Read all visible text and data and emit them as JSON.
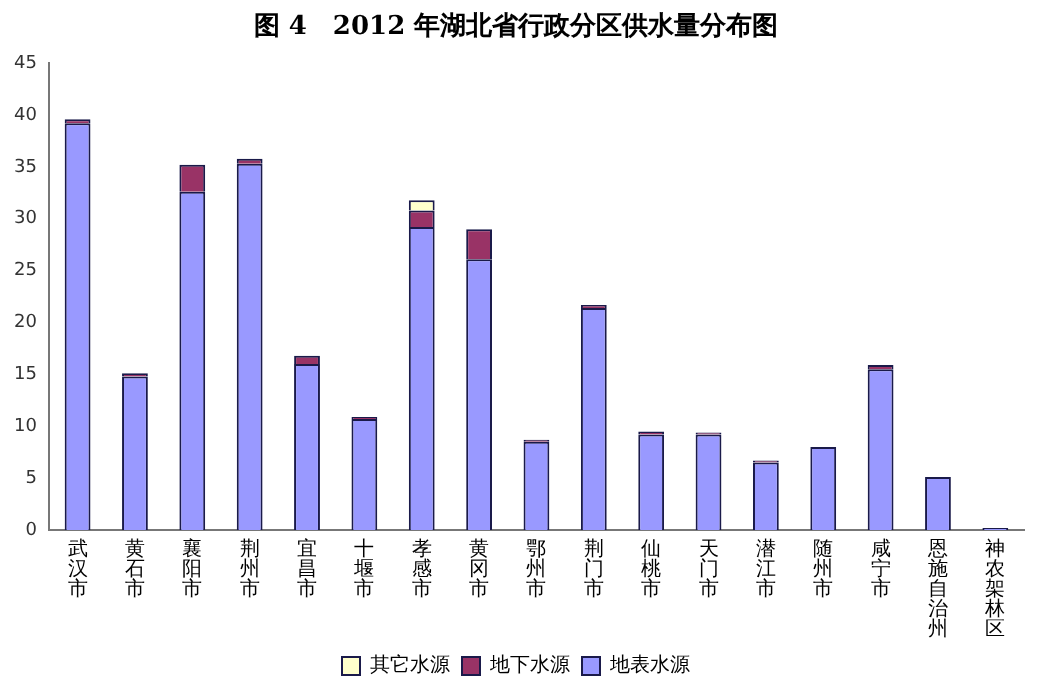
{
  "chart_data": {
    "type": "bar",
    "title": "图 4　2012 年湖北省行政分区供水量分布图",
    "categories": [
      "武汉市",
      "黄石市",
      "襄阳市",
      "荆州市",
      "宜昌市",
      "十堰市",
      "孝感市",
      "黄冈市",
      "鄂州市",
      "荆门市",
      "仙桃市",
      "天门市",
      "潜江市",
      "随州市",
      "咸宁市",
      "恩施自治州",
      "神农架林区"
    ],
    "stacked": true,
    "ylim": [
      0,
      45
    ],
    "yticks": [
      0,
      5,
      10,
      15,
      20,
      25,
      30,
      35,
      40,
      45
    ],
    "grid": false,
    "legend": "bottom",
    "series": [
      {
        "name": "地表水源",
        "color": "#9999ff",
        "values": [
          39.2,
          14.8,
          32.6,
          35.3,
          16.0,
          10.7,
          29.2,
          26.1,
          8.5,
          21.4,
          9.2,
          9.2,
          6.5,
          8.0,
          15.5,
          5.1,
          0.2
        ]
      },
      {
        "name": "地下水源",
        "color": "#993366",
        "values": [
          0.4,
          0.3,
          2.6,
          0.5,
          0.8,
          0.2,
          1.6,
          2.9,
          0.2,
          0.3,
          0.3,
          0.2,
          0.2,
          0,
          0.4,
          0,
          0
        ]
      },
      {
        "name": "其它水源",
        "color": "#ffffcc",
        "values": [
          0,
          0,
          0,
          0,
          0,
          0,
          1.0,
          0,
          0,
          0,
          0,
          0,
          0,
          0,
          0,
          0,
          0
        ]
      }
    ]
  }
}
